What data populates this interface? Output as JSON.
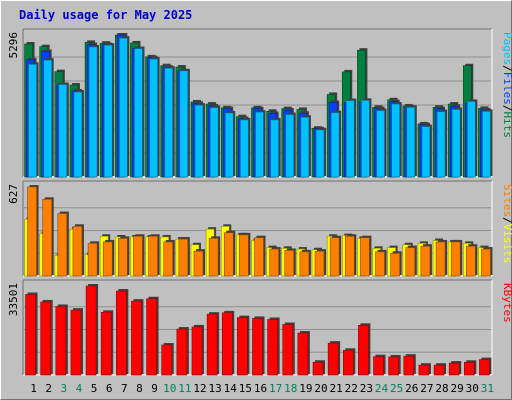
{
  "title": "Daily usage for May 2025",
  "colors": {
    "hits": "#008040",
    "files": "#0040ff",
    "pages": "#00c0ff",
    "visits": "#ffff00",
    "sites": "#ff8000",
    "kbytes": "#ff0000",
    "title": "#0000cc",
    "weekday": "#000000",
    "weekend": "#00805c"
  },
  "chart_data": [
    {
      "type": "bar",
      "panel": "hits-files-pages",
      "ymax_label": "5296",
      "ymax": 5296,
      "categories": [
        "1",
        "2",
        "3",
        "4",
        "5",
        "6",
        "7",
        "8",
        "9",
        "10",
        "11",
        "12",
        "13",
        "14",
        "15",
        "16",
        "17",
        "18",
        "19",
        "20",
        "21",
        "22",
        "23",
        "24",
        "25",
        "26",
        "27",
        "28",
        "29",
        "30",
        "31"
      ],
      "series": [
        {
          "name": "Hits",
          "values": [
            4960,
            4860,
            3930,
            3430,
            5020,
            4990,
            5296,
            5000,
            4480,
            4150,
            4100,
            2800,
            2720,
            2580,
            2250,
            2580,
            2450,
            2550,
            2520,
            1820,
            3080,
            3920,
            4730,
            2600,
            2880,
            2650,
            1980,
            2600,
            2720,
            4150,
            2560
          ]
        },
        {
          "name": "Files",
          "values": [
            4370,
            4680,
            3450,
            3210,
            4940,
            4940,
            5296,
            4790,
            4450,
            4100,
            3960,
            2750,
            2650,
            2550,
            2180,
            2550,
            2370,
            2500,
            2380,
            1800,
            2780,
            2780,
            2780,
            2550,
            2810,
            2600,
            1950,
            2550,
            2640,
            2750,
            2500
          ]
        },
        {
          "name": "Pages",
          "values": [
            4200,
            4360,
            3450,
            3170,
            4850,
            4920,
            5180,
            4790,
            4400,
            4060,
            3960,
            2680,
            2590,
            2390,
            2130,
            2420,
            2130,
            2330,
            2230,
            1760,
            2400,
            2850,
            2860,
            2480,
            2720,
            2600,
            1880,
            2440,
            2520,
            2820,
            2450
          ]
        }
      ],
      "legend": [
        {
          "text": "Hits",
          "color": "#008040"
        },
        {
          "text": "/",
          "color": "#000000"
        },
        {
          "text": "Files",
          "color": "#0040ff"
        },
        {
          "text": "/",
          "color": "#000000"
        },
        {
          "text": "Pages",
          "color": "#00c0ff"
        }
      ]
    },
    {
      "type": "bar",
      "panel": "visits-sites",
      "ymax_label": "627",
      "ymax": 627,
      "categories": [
        "1",
        "2",
        "3",
        "4",
        "5",
        "6",
        "7",
        "8",
        "9",
        "10",
        "11",
        "12",
        "13",
        "14",
        "15",
        "16",
        "17",
        "18",
        "19",
        "20",
        "21",
        "22",
        "23",
        "24",
        "25",
        "26",
        "27",
        "28",
        "29",
        "30",
        "31"
      ],
      "series": [
        {
          "name": "Visits",
          "values": [
            400,
            300,
            145,
            330,
            150,
            280,
            275,
            275,
            275,
            275,
            260,
            220,
            330,
            350,
            290,
            250,
            200,
            195,
            190,
            185,
            280,
            285,
            265,
            195,
            200,
            220,
            230,
            250,
            240,
            230,
            200
          ]
        },
        {
          "name": "Sites",
          "values": [
            627,
            540,
            440,
            350,
            230,
            240,
            265,
            280,
            280,
            240,
            260,
            175,
            265,
            305,
            290,
            270,
            190,
            180,
            170,
            175,
            270,
            280,
            270,
            170,
            160,
            200,
            210,
            240,
            240,
            210,
            190
          ]
        }
      ],
      "legend": [
        {
          "text": "Visits",
          "color": "#ffff00"
        },
        {
          "text": "/",
          "color": "#000000"
        },
        {
          "text": "Sites",
          "color": "#ff8000"
        }
      ]
    },
    {
      "type": "bar",
      "panel": "kbytes",
      "ymax_label": "33501",
      "ymax": 33501,
      "categories": [
        "1",
        "2",
        "3",
        "4",
        "5",
        "6",
        "7",
        "8",
        "9",
        "10",
        "11",
        "12",
        "13",
        "14",
        "15",
        "16",
        "17",
        "18",
        "19",
        "20",
        "21",
        "22",
        "23",
        "24",
        "25",
        "26",
        "27",
        "28",
        "29",
        "30",
        "31"
      ],
      "series": [
        {
          "name": "KBytes",
          "values": [
            30300,
            27500,
            25800,
            24400,
            33501,
            23600,
            31600,
            27800,
            28700,
            11300,
            17300,
            18100,
            22900,
            23400,
            21600,
            21300,
            20900,
            19000,
            15800,
            4800,
            12000,
            9300,
            18700,
            6900,
            6800,
            7100,
            3700,
            3700,
            4500,
            4800,
            5800
          ]
        }
      ],
      "legend": [
        {
          "text": "KBytes",
          "color": "#ff0000"
        }
      ]
    }
  ]
}
